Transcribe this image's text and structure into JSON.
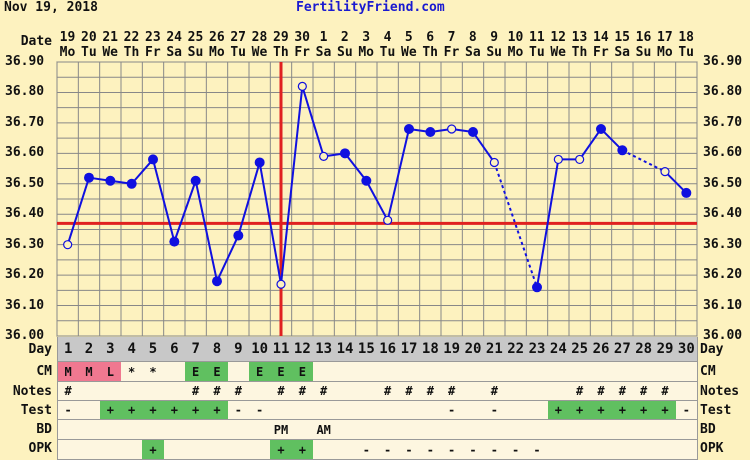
{
  "header": {
    "cycle_date": "Nov 19, 2018",
    "site": "FertilityFriend.com"
  },
  "labels": {
    "date": "Date",
    "day": "Day",
    "cm": "CM",
    "notes": "Notes",
    "test": "Test",
    "bd": "BD",
    "opk": "OPK"
  },
  "colors": {
    "background": "#fdf2bf",
    "line": "#1010e0",
    "coverline": "#e02020",
    "ovulation_line": "#e02020",
    "menses": "#f07890",
    "positive": "#60c060",
    "day_row": "#c8c8c8",
    "row_bg": "#fdf6e0"
  },
  "chart_data": {
    "type": "line",
    "ylim": [
      36.0,
      36.9
    ],
    "yticks": [
      "36.90",
      "36.80",
      "36.70",
      "36.60",
      "36.50",
      "36.40",
      "36.30",
      "36.20",
      "36.10",
      "36.00"
    ],
    "grid": true,
    "dates": [
      "19",
      "20",
      "21",
      "22",
      "23",
      "24",
      "25",
      "26",
      "27",
      "28",
      "29",
      "30",
      "1",
      "2",
      "3",
      "4",
      "5",
      "6",
      "7",
      "8",
      "9",
      "10",
      "11",
      "12",
      "13",
      "14",
      "15",
      "16",
      "17",
      "18"
    ],
    "weekdays": [
      "Mo",
      "Tu",
      "We",
      "Th",
      "Fr",
      "Sa",
      "Su",
      "Mo",
      "Tu",
      "We",
      "Th",
      "Fr",
      "Sa",
      "Su",
      "Mo",
      "Tu",
      "We",
      "Th",
      "Fr",
      "Sa",
      "Su",
      "Mo",
      "Tu",
      "We",
      "Th",
      "Fr",
      "Sa",
      "Su",
      "Mo",
      "Tu"
    ],
    "days": [
      "1",
      "2",
      "3",
      "4",
      "5",
      "6",
      "7",
      "8",
      "9",
      "10",
      "11",
      "12",
      "13",
      "14",
      "15",
      "16",
      "17",
      "18",
      "19",
      "20",
      "21",
      "22",
      "23",
      "24",
      "25",
      "26",
      "27",
      "28",
      "29",
      "30"
    ],
    "temperatures": [
      36.3,
      36.52,
      36.51,
      36.5,
      36.58,
      36.31,
      36.51,
      36.18,
      36.33,
      36.57,
      36.17,
      36.82,
      36.59,
      36.6,
      36.51,
      36.38,
      36.68,
      36.67,
      36.68,
      36.67,
      36.57,
      null,
      36.16,
      36.58,
      36.58,
      36.68,
      36.61,
      null,
      36.54,
      36.47
    ],
    "open_markers": [
      1,
      11,
      12,
      13,
      16,
      19,
      21,
      24,
      25,
      29
    ],
    "coverline": 36.37,
    "ovulation_day": 11
  },
  "rows": {
    "cm": [
      "M",
      "M",
      "L",
      "*",
      "*",
      "",
      "E",
      "E",
      "",
      "E",
      "E",
      "E",
      "",
      "",
      "",
      "",
      "",
      "",
      "",
      "",
      "",
      "",
      "",
      "",
      "",
      "",
      "",
      "",
      "",
      ""
    ],
    "cm_colors": [
      "pink",
      "pink",
      "pink",
      "",
      "",
      "",
      "green",
      "green",
      "",
      "green",
      "green",
      "green",
      "",
      "",
      "",
      "",
      "",
      "",
      "",
      "",
      "",
      "",
      "",
      "",
      "",
      "",
      "",
      "",
      "",
      ""
    ],
    "notes": [
      "#",
      "",
      "",
      "",
      "",
      "",
      "#",
      "#",
      "#",
      "",
      "#",
      "#",
      "#",
      "",
      "",
      "#",
      "#",
      "#",
      "#",
      "",
      "#",
      "",
      "",
      "",
      "#",
      "#",
      "#",
      "#",
      "#",
      ""
    ],
    "test": [
      "-",
      "",
      "+",
      "+",
      "+",
      "+",
      "+",
      "+",
      "-",
      "-",
      "",
      "",
      "",
      "",
      "",
      "",
      "",
      "",
      "-",
      "",
      "-",
      "",
      "",
      "+",
      "+",
      "+",
      "+",
      "+",
      "+",
      "-"
    ],
    "bd": [
      "",
      "",
      "",
      "",
      "",
      "",
      "",
      "",
      "",
      "",
      "PM",
      "",
      "AM",
      "",
      "",
      "",
      "",
      "",
      "",
      "",
      "",
      "",
      "",
      "",
      "",
      "",
      "",
      "",
      "",
      ""
    ],
    "opk": [
      "",
      "",
      "",
      "",
      "+",
      "",
      "",
      "",
      "",
      "",
      "+",
      "+",
      "",
      "",
      "-",
      "-",
      "-",
      "-",
      "-",
      "-",
      "-",
      "-",
      "-",
      "",
      "",
      "",
      "",
      "",
      "",
      ""
    ]
  }
}
